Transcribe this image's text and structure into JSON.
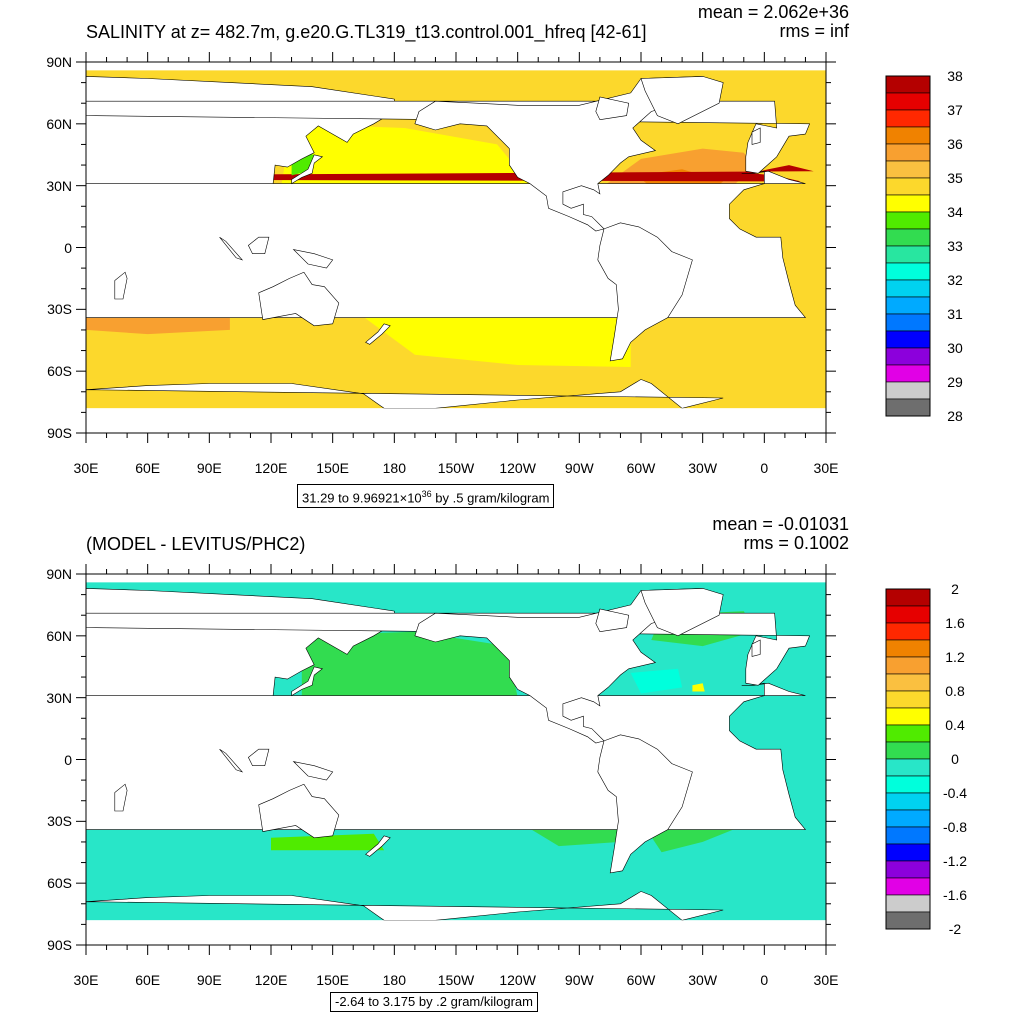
{
  "chart_data": [
    {
      "type": "heatmap",
      "title": "SALINITY at z= 482.7m, g.e20.G.TL319_t13.control.001_hfreq [42-61]",
      "stats": {
        "mean": "mean = 2.062e+36",
        "rms": "rms = inf"
      },
      "range_label": {
        "prefix": "31.29 to 9.96921",
        "times": "×",
        "base": "10",
        "exp": "36",
        "suffix": " by .5 gram/kilogram"
      },
      "x_ticks": [
        "30E",
        "60E",
        "90E",
        "120E",
        "150E",
        "180",
        "150W",
        "120W",
        "90W",
        "60W",
        "30W",
        "0",
        "30E"
      ],
      "y_ticks": [
        "90N",
        "60N",
        "30N",
        "0",
        "30S",
        "60S",
        "90S"
      ],
      "colorbar": {
        "labels": [
          "38",
          "37",
          "36",
          "35",
          "34",
          "33",
          "32",
          "31",
          "30",
          "29",
          "28"
        ],
        "colors": [
          "#b40000",
          "#e60000",
          "#ff2800",
          "#f08200",
          "#f8a030",
          "#fac040",
          "#fcd82c",
          "#ffff00",
          "#50eb00",
          "#32dc50",
          "#28e6a0",
          "#00ffdc",
          "#00d2f0",
          "#00aaff",
          "#0078ff",
          "#0000ff",
          "#8c00dc",
          "#e100e6",
          "#cccccc",
          "#6e6e6e"
        ]
      },
      "features": {
        "ocean_fill": "#fcd82c",
        "pacific_fill": "#ffff00",
        "atlantic_subtropical_fill": "#f8a030",
        "atlantic_core_fill": "#f08200",
        "mediterranean_fill": "#b40000",
        "sea_of_japan_fill": "#50eb00"
      }
    },
    {
      "type": "heatmap",
      "title": "(MODEL - LEVITUS/PHC2)",
      "stats": {
        "mean": "mean = -0.01031",
        "rms": "rms = 0.1002"
      },
      "range_label": {
        "prefix": "-2.64 to 3.175 by .2 gram/kilogram"
      },
      "x_ticks": [
        "30E",
        "60E",
        "90E",
        "120E",
        "150E",
        "180",
        "150W",
        "120W",
        "90W",
        "60W",
        "30W",
        "0",
        "30E"
      ],
      "y_ticks": [
        "90N",
        "60N",
        "30N",
        "0",
        "30S",
        "60S",
        "90S"
      ],
      "colorbar": {
        "labels": [
          "2",
          "1.6",
          "1.2",
          "0.8",
          "0.4",
          "0",
          "-0.4",
          "-0.8",
          "-1.2",
          "-1.6",
          "-2"
        ],
        "colors": [
          "#b40000",
          "#e60000",
          "#ff2800",
          "#f08200",
          "#f8a030",
          "#fac040",
          "#fcd82c",
          "#ffff00",
          "#50eb00",
          "#32dc50",
          "#28e6c8",
          "#00ffdc",
          "#00d2f0",
          "#00aaff",
          "#0078ff",
          "#0000ff",
          "#8c00dc",
          "#e100e6",
          "#cccccc",
          "#6e6e6e"
        ]
      },
      "features": {
        "ocean_fill": "#28e6c8",
        "positive_fill": "#32dc50",
        "strong_positive_fill": "#50eb00",
        "negative_fill": "#00ffdc"
      }
    }
  ]
}
